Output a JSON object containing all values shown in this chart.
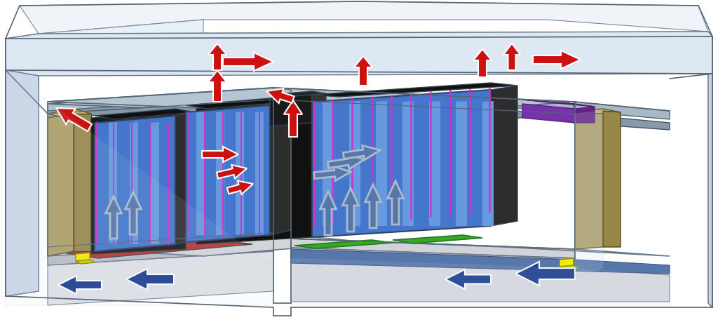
{
  "bg": "#ffffff",
  "colors": {
    "red": "#cc1111",
    "blue_dark": "#1a3d8f",
    "blue_mid": "#4466aa",
    "blue_light": "#7799cc",
    "outline_arrow": "#5577aa",
    "server_blue": "#4477cc",
    "server_dark": "#1a1a1a",
    "server_side": "#2d2d2d",
    "server_top": "#111111",
    "magenta": "#cc33cc",
    "green": "#33aa22",
    "beige": "#b0a068",
    "beige_top": "#c8b878",
    "beige_side": "#988848",
    "red_floor": "#bb3333",
    "blue_floor": "#5577aa",
    "yellow": "#eeee00",
    "purple": "#7733aa",
    "wall_light": "#d8e8f0",
    "wall_mid": "#c0d4e4",
    "wall_dark": "#a8c0d4",
    "ceil_top": "#c8d8e4",
    "ceil_face": "#9db0c0",
    "floor_light": "#e0e4e8",
    "floor_dark": "#c8ccd0",
    "glass": "#c8dcea",
    "edge": "#556677"
  }
}
